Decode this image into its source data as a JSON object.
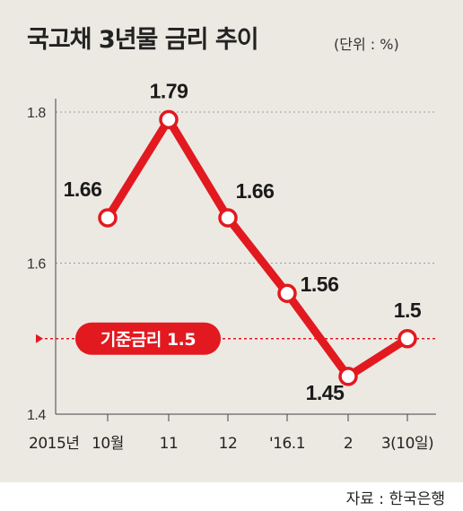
{
  "header": {
    "title": "국고채 3년물 금리 추이",
    "unit": "(단위 : %)"
  },
  "footer": {
    "source": "자료 : 한국은행"
  },
  "colors": {
    "line": "#e2191f",
    "grid": "#9a9a9a",
    "background": "#ece9e3"
  },
  "chart_data": {
    "type": "line",
    "title": "국고채 3년물 금리 추이",
    "x_prefix_label": "2015년",
    "categories": [
      "10월",
      "11",
      "12",
      "'16.1",
      "2",
      "3(10일)"
    ],
    "series": [
      {
        "values": [
          1.66,
          1.79,
          1.66,
          1.56,
          1.45,
          1.5
        ]
      }
    ],
    "data_labels": [
      "1.66",
      "1.79",
      "1.66",
      "1.56",
      "1.45",
      "1.5"
    ],
    "ylim": [
      1.4,
      1.8
    ],
    "y_ticks": [
      1.4,
      1.6,
      1.8
    ],
    "y_tick_labels": [
      "1.4",
      "1.6",
      "1.8"
    ],
    "grid": true,
    "reference_line": {
      "value": 1.5,
      "label": "기준금리 1.5"
    }
  }
}
